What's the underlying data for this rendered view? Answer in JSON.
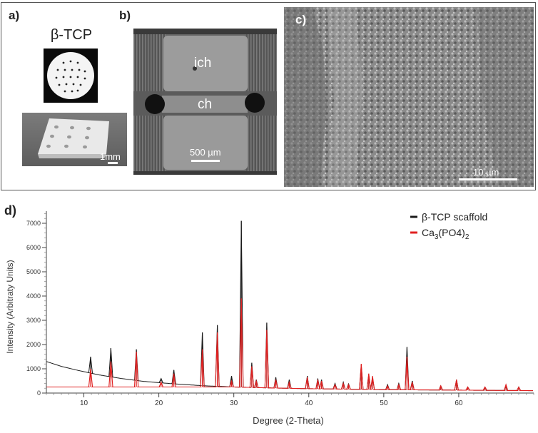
{
  "figure": {
    "panel_a": {
      "label": "a)",
      "title": "β-TCP",
      "scale_label": "1mm"
    },
    "panel_b": {
      "label": "b)",
      "region_top": "ich",
      "region_mid": "ch",
      "scale_label": "500 µm"
    },
    "panel_c": {
      "label": "c)",
      "scale_label": "10 µm"
    },
    "panel_d": {
      "label": "d)"
    }
  },
  "chart_data": {
    "type": "line",
    "xlabel": "Degree (2-Theta)",
    "ylabel": "Intensity (Arbitraty Units)",
    "xlim": [
      5,
      70
    ],
    "ylim": [
      0,
      7500
    ],
    "x_ticks": [
      10,
      20,
      30,
      40,
      50,
      60
    ],
    "y_ticks": [
      0,
      1000,
      2000,
      3000,
      4000,
      5000,
      6000,
      7000
    ],
    "y_tick_labels": [
      "0",
      "1000",
      "2000",
      "3000",
      "4000",
      "5000",
      "6000",
      "7000"
    ],
    "legend_position": "top-right",
    "colors": {
      "scaffold": "#1a1a1a",
      "reference": "#e02020"
    },
    "series": [
      {
        "name": "β-TCP scaffold",
        "color": "#1a1a1a",
        "baseline": [
          [
            5,
            1300
          ],
          [
            7,
            1100
          ],
          [
            9,
            950
          ],
          [
            12,
            750
          ],
          [
            15,
            600
          ],
          [
            18,
            480
          ],
          [
            22,
            380
          ],
          [
            26,
            300
          ],
          [
            30,
            250
          ],
          [
            35,
            210
          ],
          [
            40,
            180
          ],
          [
            45,
            160
          ],
          [
            50,
            140
          ],
          [
            55,
            130
          ],
          [
            60,
            120
          ],
          [
            65,
            110
          ],
          [
            70,
            100
          ]
        ],
        "peaks": [
          [
            10.9,
            1500
          ],
          [
            13.6,
            1850
          ],
          [
            17.0,
            1800
          ],
          [
            20.3,
            600
          ],
          [
            22.0,
            950
          ],
          [
            25.8,
            2500
          ],
          [
            27.8,
            2800
          ],
          [
            29.7,
            700
          ],
          [
            31.0,
            7100
          ],
          [
            32.4,
            1250
          ],
          [
            33.0,
            550
          ],
          [
            34.4,
            2900
          ],
          [
            35.6,
            650
          ],
          [
            37.4,
            550
          ],
          [
            39.8,
            700
          ],
          [
            41.2,
            600
          ],
          [
            41.7,
            550
          ],
          [
            43.5,
            400
          ],
          [
            44.6,
            450
          ],
          [
            45.3,
            380
          ],
          [
            47.0,
            1150
          ],
          [
            48.0,
            750
          ],
          [
            48.5,
            650
          ],
          [
            50.5,
            350
          ],
          [
            52.0,
            400
          ],
          [
            53.1,
            1900
          ],
          [
            53.8,
            500
          ],
          [
            57.6,
            300
          ],
          [
            59.7,
            550
          ],
          [
            61.2,
            250
          ],
          [
            63.5,
            250
          ],
          [
            66.3,
            300
          ],
          [
            68.0,
            250
          ]
        ]
      },
      {
        "name": "Ca3(PO4)2",
        "color": "#e02020",
        "peaks": [
          [
            10.9,
            1000
          ],
          [
            13.6,
            1300
          ],
          [
            17.0,
            1700
          ],
          [
            20.3,
            450
          ],
          [
            22.0,
            800
          ],
          [
            25.8,
            1800
          ],
          [
            27.8,
            2500
          ],
          [
            29.7,
            500
          ],
          [
            31.0,
            3900
          ],
          [
            32.4,
            1100
          ],
          [
            33.0,
            500
          ],
          [
            34.4,
            2600
          ],
          [
            35.6,
            550
          ],
          [
            37.4,
            450
          ],
          [
            39.8,
            650
          ],
          [
            41.2,
            550
          ],
          [
            41.7,
            500
          ],
          [
            43.5,
            350
          ],
          [
            44.6,
            400
          ],
          [
            45.3,
            350
          ],
          [
            47.0,
            1200
          ],
          [
            48.0,
            800
          ],
          [
            48.5,
            700
          ],
          [
            50.5,
            300
          ],
          [
            52.0,
            350
          ],
          [
            53.1,
            1500
          ],
          [
            53.8,
            450
          ],
          [
            57.6,
            300
          ],
          [
            59.7,
            550
          ],
          [
            61.2,
            250
          ],
          [
            63.5,
            250
          ],
          [
            66.3,
            350
          ],
          [
            68.0,
            250
          ]
        ]
      }
    ]
  }
}
